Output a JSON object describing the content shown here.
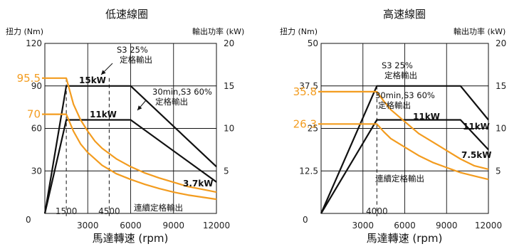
{
  "colors": {
    "black": "#111111",
    "orange": "#f39c1f"
  },
  "chart_data": [
    {
      "type": "line",
      "title": "低速線圈",
      "xlabel": "馬達轉速 (rpm)",
      "ylabel": "扭力 (Nm)",
      "y2label": "輸出功率 (kW)",
      "xlim": [
        0,
        12000
      ],
      "ylim": [
        0,
        120
      ],
      "y2lim": [
        0,
        20
      ],
      "x_ticks": [
        3000,
        6000,
        9000,
        12000
      ],
      "y_ticks": [
        0,
        30,
        60,
        90,
        120
      ],
      "y2_ticks": [
        5,
        10,
        15,
        20
      ],
      "grid": true,
      "origin_label": "0",
      "torque_markers": [
        {
          "value": 95.5,
          "label": "95.5"
        },
        {
          "value": 70,
          "label": "70"
        }
      ],
      "speed_markers": [
        {
          "value": 1500,
          "label": "1500"
        },
        {
          "value": 4500,
          "label": "4500"
        }
      ],
      "series": [
        {
          "color": "#111111",
          "points": [
            [
              0,
              0
            ],
            [
              1500,
              15
            ],
            [
              6000,
              15
            ],
            [
              12000,
              5.5
            ]
          ]
        },
        {
          "color": "#111111",
          "points": [
            [
              0,
              0
            ],
            [
              1500,
              11
            ],
            [
              6000,
              11
            ],
            [
              12000,
              3.7
            ]
          ]
        },
        {
          "color": "#f39c1f",
          "points": [
            [
              0,
              95.5
            ],
            [
              1500,
              95.5
            ],
            [
              2000,
              77
            ],
            [
              2500,
              66
            ],
            [
              3000,
              58
            ],
            [
              3500,
              51
            ],
            [
              4000,
              46
            ],
            [
              5000,
              38.5
            ],
            [
              6000,
              33
            ],
            [
              7000,
              28.5
            ],
            [
              8000,
              25
            ],
            [
              9000,
              22
            ],
            [
              10000,
              19
            ],
            [
              11000,
              17
            ],
            [
              12000,
              15
            ]
          ]
        },
        {
          "color": "#f39c1f",
          "points": [
            [
              0,
              70
            ],
            [
              1500,
              70
            ],
            [
              2000,
              58
            ],
            [
              2500,
              49
            ],
            [
              3000,
              43
            ],
            [
              3500,
              38.5
            ],
            [
              4000,
              34
            ],
            [
              5000,
              28
            ],
            [
              6000,
              24
            ],
            [
              7000,
              20.5
            ],
            [
              8000,
              17.5
            ],
            [
              9000,
              15
            ],
            [
              10000,
              13
            ],
            [
              11000,
              11.5
            ],
            [
              12000,
              10
            ]
          ]
        }
      ],
      "annotations": [
        {
          "id": "s3",
          "lines": [
            "S3 25%",
            "定格輸出"
          ]
        },
        {
          "id": "s60",
          "lines": [
            "30min,S3 60%",
            "定格輸出"
          ]
        },
        {
          "id": "cont",
          "lines": [
            "連續定格輸出"
          ]
        },
        {
          "id": "kw15",
          "lines": [
            "15kW"
          ]
        },
        {
          "id": "kw11",
          "lines": [
            "11kW"
          ]
        },
        {
          "id": "kw37",
          "lines": [
            "3.7kW"
          ]
        }
      ]
    },
    {
      "type": "line",
      "title": "高速線圈",
      "xlabel": "馬達轉速 (rpm)",
      "ylabel": "扭力 (Nm)",
      "y2label": "輸出功率 (kW)",
      "xlim": [
        0,
        12000
      ],
      "ylim": [
        0,
        50
      ],
      "y2lim": [
        0,
        20
      ],
      "x_ticks": [
        3000,
        6000,
        9000,
        12000
      ],
      "y_ticks": [
        0,
        12.5,
        25,
        37.5,
        50
      ],
      "y2_ticks": [
        5,
        10,
        15,
        20
      ],
      "grid": true,
      "origin_label": "0",
      "torque_markers": [
        {
          "value": 35.8,
          "label": "35.8"
        },
        {
          "value": 26.3,
          "label": "26.3"
        }
      ],
      "speed_markers": [
        {
          "value": 4000,
          "label": "4000"
        }
      ],
      "series": [
        {
          "color": "#111111",
          "points": [
            [
              0,
              0
            ],
            [
              4000,
              15
            ],
            [
              10000,
              15
            ],
            [
              12000,
              11
            ]
          ]
        },
        {
          "color": "#111111",
          "points": [
            [
              0,
              0
            ],
            [
              4000,
              11
            ],
            [
              10000,
              11
            ],
            [
              12000,
              7.5
            ]
          ]
        },
        {
          "color": "#f39c1f",
          "points": [
            [
              0,
              35.8
            ],
            [
              4000,
              35.8
            ],
            [
              4500,
              33
            ],
            [
              5000,
              30.5
            ],
            [
              6000,
              27
            ],
            [
              7000,
              23.5
            ],
            [
              8000,
              21
            ],
            [
              9000,
              18.5
            ],
            [
              10000,
              16
            ],
            [
              11000,
              14
            ],
            [
              12000,
              13
            ]
          ]
        },
        {
          "color": "#f39c1f",
          "points": [
            [
              0,
              26.3
            ],
            [
              4000,
              26.3
            ],
            [
              4500,
              24
            ],
            [
              5000,
              22
            ],
            [
              6000,
              19.5
            ],
            [
              7000,
              17
            ],
            [
              8000,
              15
            ],
            [
              9000,
              13.5
            ],
            [
              10000,
              12
            ],
            [
              11000,
              11
            ],
            [
              12000,
              10
            ]
          ]
        }
      ],
      "annotations": [
        {
          "id": "s3",
          "lines": [
            "S3 25%",
            "定格輸出"
          ]
        },
        {
          "id": "s60",
          "lines": [
            "30min,S3 60%",
            "定格輸出"
          ]
        },
        {
          "id": "cont",
          "lines": [
            "連續定格輸出"
          ]
        },
        {
          "id": "kw11a",
          "lines": [
            "11kW"
          ]
        },
        {
          "id": "kw11b",
          "lines": [
            "11kW"
          ]
        },
        {
          "id": "kw75",
          "lines": [
            "7.5kW"
          ]
        }
      ]
    }
  ]
}
